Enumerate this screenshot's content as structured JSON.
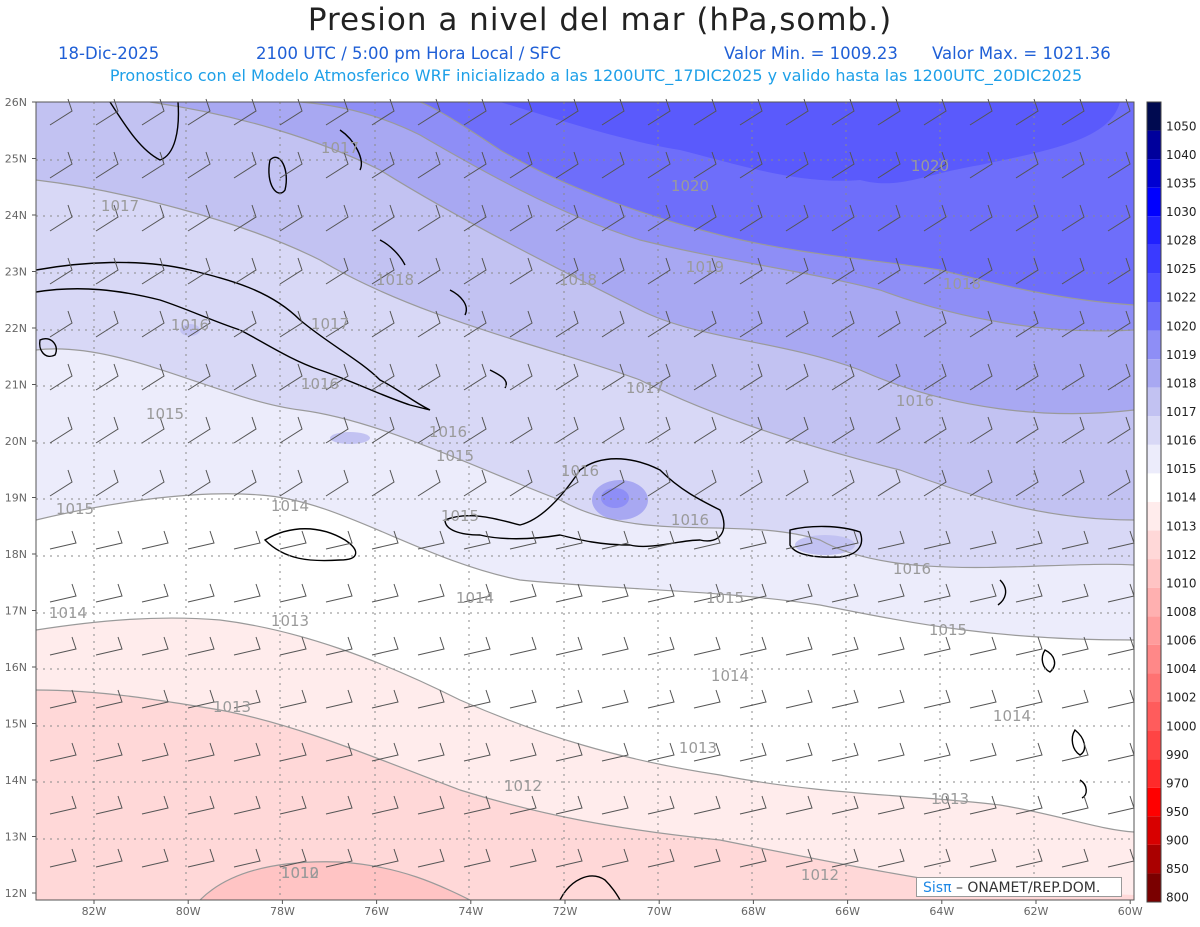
{
  "header": {
    "title": "Presion a nivel del mar (hPa,somb.)",
    "date": "18-Dic-2025",
    "time": "2100 UTC / 5:00 pm Hora Local / SFC",
    "min": "Valor Min. = 1009.23",
    "max": "Valor Max. = 1021.36",
    "info": "Pronostico con el Modelo Atmosferico WRF inicializado a las 1200UTC_17DIC2025 y valido hasta las  1200UTC_20DIC2025"
  },
  "axes": {
    "lat_labels": [
      "26N",
      "25N",
      "24N",
      "23N",
      "22N",
      "21N",
      "20N",
      "19N",
      "18N",
      "17N",
      "16N",
      "15N",
      "14N",
      "13N",
      "12N"
    ],
    "lon_labels": [
      "82W",
      "80W",
      "78W",
      "76W",
      "74W",
      "72W",
      "70W",
      "68W",
      "66W",
      "64W",
      "62W",
      "60W"
    ]
  },
  "colorbar": {
    "levels": [
      "1050",
      "1040",
      "1035",
      "1030",
      "1028",
      "1025",
      "1022",
      "1020",
      "1019",
      "1018",
      "1017",
      "1016",
      "1015",
      "1014",
      "1013",
      "1012",
      "1010",
      "1008",
      "1006",
      "1004",
      "1002",
      "1000",
      "990",
      "970",
      "950",
      "900",
      "850",
      "800"
    ],
    "colors": [
      "#000a50",
      "#00009c",
      "#0000d2",
      "#0000ff",
      "#2020ff",
      "#3a3aff",
      "#5050ff",
      "#6e6efa",
      "#8e8ef6",
      "#a8a8f2",
      "#c2c2f2",
      "#d8d8f6",
      "#ececfb",
      "#ffffff",
      "#ffecec",
      "#ffd8d8",
      "#ffc4c4",
      "#ffb0b0",
      "#ff9c9c",
      "#ff8888",
      "#ff7272",
      "#ff5c5c",
      "#ff4444",
      "#ff2a2a",
      "#ff0000",
      "#d80000",
      "#aa0000",
      "#7a0000"
    ]
  },
  "isobars": [
    "1020",
    "1020",
    "1019",
    "1018",
    "1018",
    "1018",
    "1017",
    "1017",
    "1017",
    "1017",
    "1016",
    "1016",
    "1016",
    "1016",
    "1016",
    "1016",
    "1016",
    "1015",
    "1015",
    "1015",
    "1015",
    "1015",
    "1015",
    "1014",
    "1014",
    "1014",
    "1014",
    "1014",
    "1013",
    "1013",
    "1013",
    "1013",
    "1012",
    "1012",
    "1012",
    "1010"
  ],
  "credit": {
    "brand": "Sisπ",
    "text": " – ONAMET/REP.DOM."
  }
}
